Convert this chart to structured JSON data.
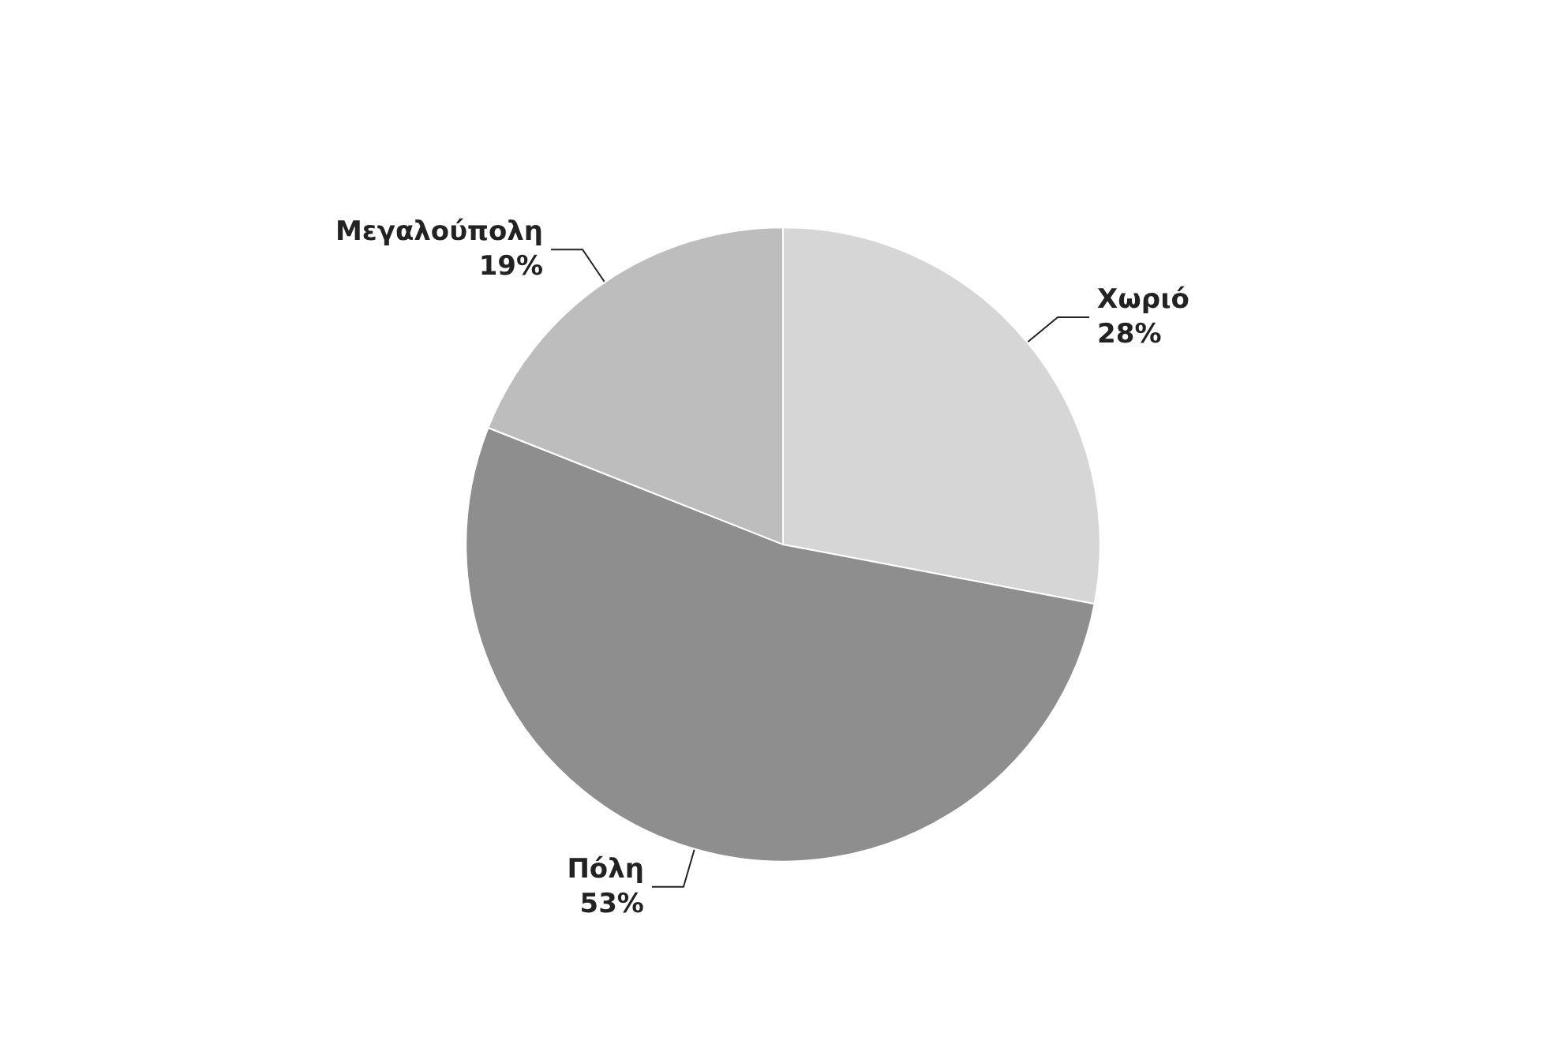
{
  "chart_data": {
    "type": "pie",
    "categories": [
      "Χωριό",
      "Πόλη",
      "Μεγαλούπολη"
    ],
    "values": [
      28,
      53,
      19
    ],
    "value_labels": [
      "28%",
      "53%",
      "19%"
    ],
    "colors": [
      "#d6d6d6",
      "#8e8e8e",
      "#bdbdbd"
    ]
  }
}
